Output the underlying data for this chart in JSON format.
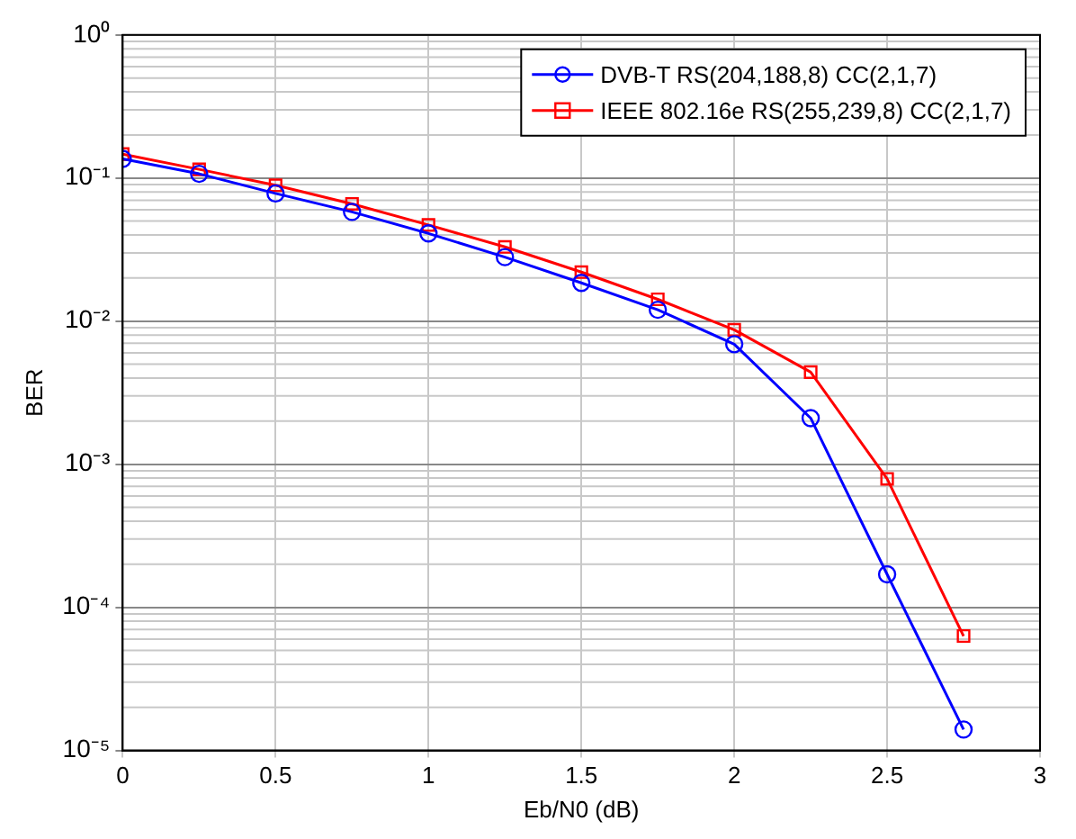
{
  "chart_data": {
    "type": "line",
    "xlabel": "Eb/N0 (dB)",
    "ylabel": "BER",
    "log": "y",
    "grid": true,
    "legend": "top right",
    "line_style": "solid",
    "x": [
      0,
      0.25,
      0.5,
      0.75,
      1,
      1.25,
      1.5,
      1.75,
      2,
      2.25,
      2.5,
      2.75
    ],
    "xlim": [
      0,
      3
    ],
    "xticks": [
      0,
      0.5,
      1,
      1.5,
      2,
      2.5,
      3
    ],
    "ylim": [
      1e-05,
      1
    ],
    "yticks": [
      {
        "value": 1e-05,
        "label": "10⁻⁵"
      },
      {
        "value": 0.0001,
        "label": "10⁻⁴"
      },
      {
        "value": 0.001,
        "label": "10⁻³"
      },
      {
        "value": 0.01,
        "label": "10⁻²"
      },
      {
        "value": 0.1,
        "label": "10⁻¹"
      },
      {
        "value": 1,
        "label": "10⁰"
      }
    ],
    "series": [
      {
        "name": "DVB-T RS(204,188,8) CC(2,1,7)",
        "color": "#0000ff",
        "marker": "circle",
        "values": [
          0.136,
          0.107,
          0.078,
          0.058,
          0.041,
          0.028,
          0.0185,
          0.012,
          0.0069,
          0.0021,
          0.00017,
          1.4e-05
        ]
      },
      {
        "name": "IEEE 802.16e RS(255,239,8) CC(2,1,7)",
        "color": "#ff0000",
        "marker": "square",
        "values": [
          0.147,
          0.115,
          0.089,
          0.066,
          0.047,
          0.033,
          0.022,
          0.0142,
          0.0087,
          0.0044,
          0.00079,
          6.3e-05
        ]
      }
    ]
  }
}
